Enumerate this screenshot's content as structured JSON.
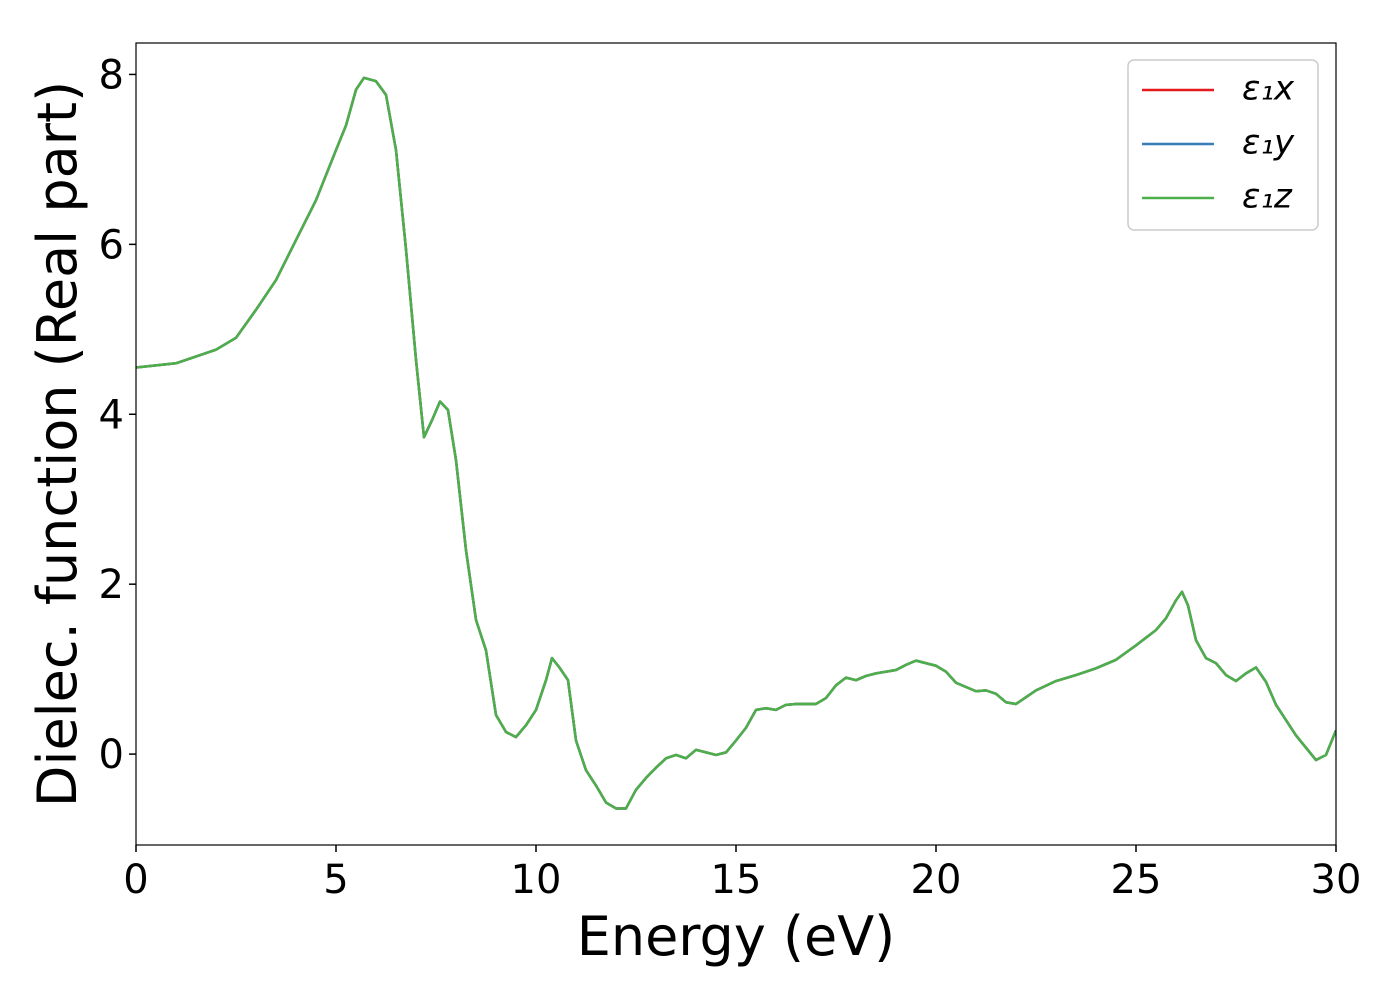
{
  "chart_data": {
    "type": "line",
    "xlabel": "Energy (eV)",
    "ylabel": "Dielec. function (Real part)",
    "x": [
      0,
      1,
      2,
      2.5,
      3,
      3.5,
      4,
      4.5,
      5,
      5.25,
      5.5,
      5.7,
      6,
      6.25,
      6.5,
      6.75,
      7,
      7.2,
      7.4,
      7.6,
      7.8,
      8,
      8.25,
      8.5,
      8.75,
      9,
      9.25,
      9.5,
      9.75,
      10,
      10.25,
      10.4,
      10.6,
      10.8,
      11,
      11.25,
      11.5,
      11.75,
      12,
      12.25,
      12.5,
      12.75,
      13,
      13.25,
      13.5,
      13.75,
      14,
      14.25,
      14.5,
      14.75,
      15,
      15.25,
      15.5,
      15.75,
      16,
      16.25,
      16.5,
      17,
      17.25,
      17.5,
      17.75,
      18,
      18.25,
      18.5,
      19,
      19.25,
      19.5,
      20,
      20.25,
      20.5,
      21,
      21.25,
      21.5,
      21.75,
      22,
      22.25,
      22.5,
      23,
      23.5,
      24,
      24.5,
      25,
      25.5,
      25.75,
      26,
      26.15,
      26.3,
      26.5,
      26.75,
      27,
      27.25,
      27.5,
      27.75,
      28,
      28.25,
      28.5,
      29,
      29.5,
      29.75,
      30
    ],
    "series": [
      {
        "name": "ε₁x",
        "color": "#e41a1c",
        "values": [
          4.55,
          4.6,
          4.76,
          4.9,
          5.23,
          5.58,
          6.05,
          6.52,
          7.11,
          7.4,
          7.82,
          7.96,
          7.92,
          7.76,
          7.11,
          5.94,
          4.64,
          3.73,
          3.93,
          4.15,
          4.05,
          3.46,
          2.4,
          1.58,
          1.22,
          0.46,
          0.26,
          0.2,
          0.34,
          0.52,
          0.87,
          1.13,
          1.01,
          0.87,
          0.16,
          -0.19,
          -0.37,
          -0.57,
          -0.64,
          -0.64,
          -0.42,
          -0.28,
          -0.16,
          -0.05,
          -0.01,
          -0.05,
          0.05,
          0.02,
          -0.01,
          0.02,
          0.16,
          0.31,
          0.52,
          0.54,
          0.52,
          0.58,
          0.59,
          0.59,
          0.66,
          0.81,
          0.9,
          0.87,
          0.92,
          0.95,
          0.99,
          1.05,
          1.1,
          1.04,
          0.97,
          0.84,
          0.74,
          0.75,
          0.71,
          0.61,
          0.59,
          0.67,
          0.75,
          0.86,
          0.93,
          1.01,
          1.11,
          1.28,
          1.46,
          1.6,
          1.81,
          1.91,
          1.75,
          1.34,
          1.13,
          1.07,
          0.93,
          0.86,
          0.95,
          1.02,
          0.85,
          0.58,
          0.22,
          -0.07,
          -0.01,
          0.28
        ]
      },
      {
        "name": "ε₁y",
        "color": "#377eb8",
        "values": [
          4.55,
          4.6,
          4.76,
          4.9,
          5.23,
          5.58,
          6.05,
          6.52,
          7.11,
          7.4,
          7.82,
          7.96,
          7.92,
          7.76,
          7.11,
          5.94,
          4.64,
          3.73,
          3.93,
          4.15,
          4.05,
          3.46,
          2.4,
          1.58,
          1.22,
          0.46,
          0.26,
          0.2,
          0.34,
          0.52,
          0.87,
          1.13,
          1.01,
          0.87,
          0.16,
          -0.19,
          -0.37,
          -0.57,
          -0.64,
          -0.64,
          -0.42,
          -0.28,
          -0.16,
          -0.05,
          -0.01,
          -0.05,
          0.05,
          0.02,
          -0.01,
          0.02,
          0.16,
          0.31,
          0.52,
          0.54,
          0.52,
          0.58,
          0.59,
          0.59,
          0.66,
          0.81,
          0.9,
          0.87,
          0.92,
          0.95,
          0.99,
          1.05,
          1.1,
          1.04,
          0.97,
          0.84,
          0.74,
          0.75,
          0.71,
          0.61,
          0.59,
          0.67,
          0.75,
          0.86,
          0.93,
          1.01,
          1.11,
          1.28,
          1.46,
          1.6,
          1.81,
          1.91,
          1.75,
          1.34,
          1.13,
          1.07,
          0.93,
          0.86,
          0.95,
          1.02,
          0.85,
          0.58,
          0.22,
          -0.07,
          -0.01,
          0.28
        ]
      },
      {
        "name": "ε₁z",
        "color": "#4daf4a",
        "values": [
          4.55,
          4.6,
          4.76,
          4.9,
          5.23,
          5.58,
          6.05,
          6.52,
          7.11,
          7.4,
          7.82,
          7.96,
          7.92,
          7.76,
          7.11,
          5.94,
          4.64,
          3.73,
          3.93,
          4.15,
          4.05,
          3.46,
          2.4,
          1.58,
          1.22,
          0.46,
          0.26,
          0.2,
          0.34,
          0.52,
          0.87,
          1.13,
          1.01,
          0.87,
          0.16,
          -0.19,
          -0.37,
          -0.57,
          -0.64,
          -0.64,
          -0.42,
          -0.28,
          -0.16,
          -0.05,
          -0.01,
          -0.05,
          0.05,
          0.02,
          -0.01,
          0.02,
          0.16,
          0.31,
          0.52,
          0.54,
          0.52,
          0.58,
          0.59,
          0.59,
          0.66,
          0.81,
          0.9,
          0.87,
          0.92,
          0.95,
          0.99,
          1.05,
          1.1,
          1.04,
          0.97,
          0.84,
          0.74,
          0.75,
          0.71,
          0.61,
          0.59,
          0.67,
          0.75,
          0.86,
          0.93,
          1.01,
          1.11,
          1.28,
          1.46,
          1.6,
          1.81,
          1.91,
          1.75,
          1.34,
          1.13,
          1.07,
          0.93,
          0.86,
          0.95,
          1.02,
          0.85,
          0.58,
          0.22,
          -0.07,
          -0.01,
          0.28
        ]
      }
    ],
    "xlim": [
      0,
      30
    ],
    "ylim": [
      -1.07,
      8.37
    ],
    "xticks": [
      0,
      5,
      10,
      15,
      20,
      25,
      30
    ],
    "yticks": [
      0,
      2,
      4,
      6,
      8
    ],
    "grid": false,
    "legend": "upper right"
  }
}
